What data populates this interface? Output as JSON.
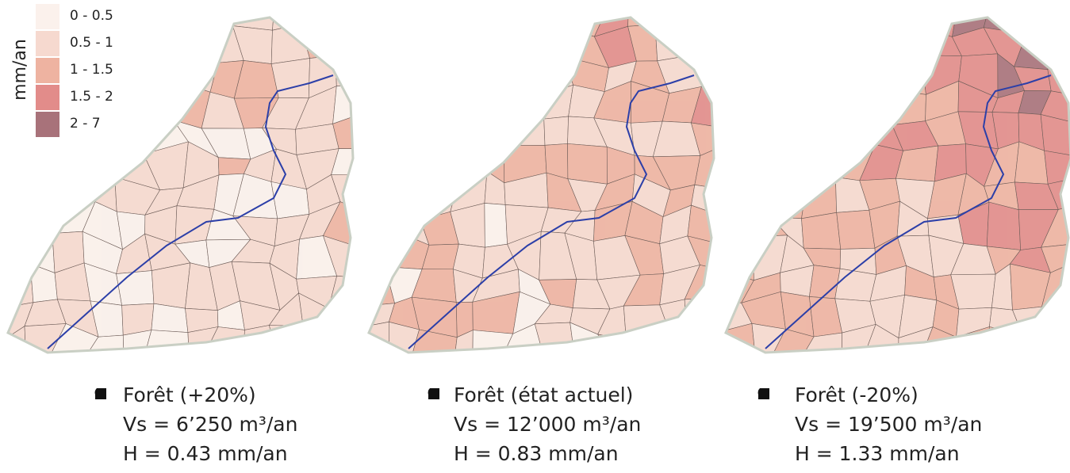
{
  "legend": {
    "title": "mm/an",
    "items": [
      {
        "label": "0 - 0.5",
        "color": "#fbf1ec"
      },
      {
        "label": "0.5 - 1",
        "color": "#f6d9cf"
      },
      {
        "label": "1 - 1.5",
        "color": "#eeb3a1"
      },
      {
        "label": "1.5 - 2",
        "color": "#e28c8a"
      },
      {
        "label": "2 - 7",
        "color": "#a8727a"
      }
    ]
  },
  "scenarios": [
    {
      "title": "Forêt (+20%)",
      "volume": "Vs = 6’250 m³/an",
      "height": "H = 0.43 mm/an"
    },
    {
      "title": "Forêt (état actuel)",
      "volume": "Vs = 12’000 m³/an",
      "height": "H = 0.83 mm/an"
    },
    {
      "title": "Forêt (-20%)",
      "volume": "Vs = 19’500 m³/an",
      "height": "H = 1.33 mm/an"
    }
  ]
}
